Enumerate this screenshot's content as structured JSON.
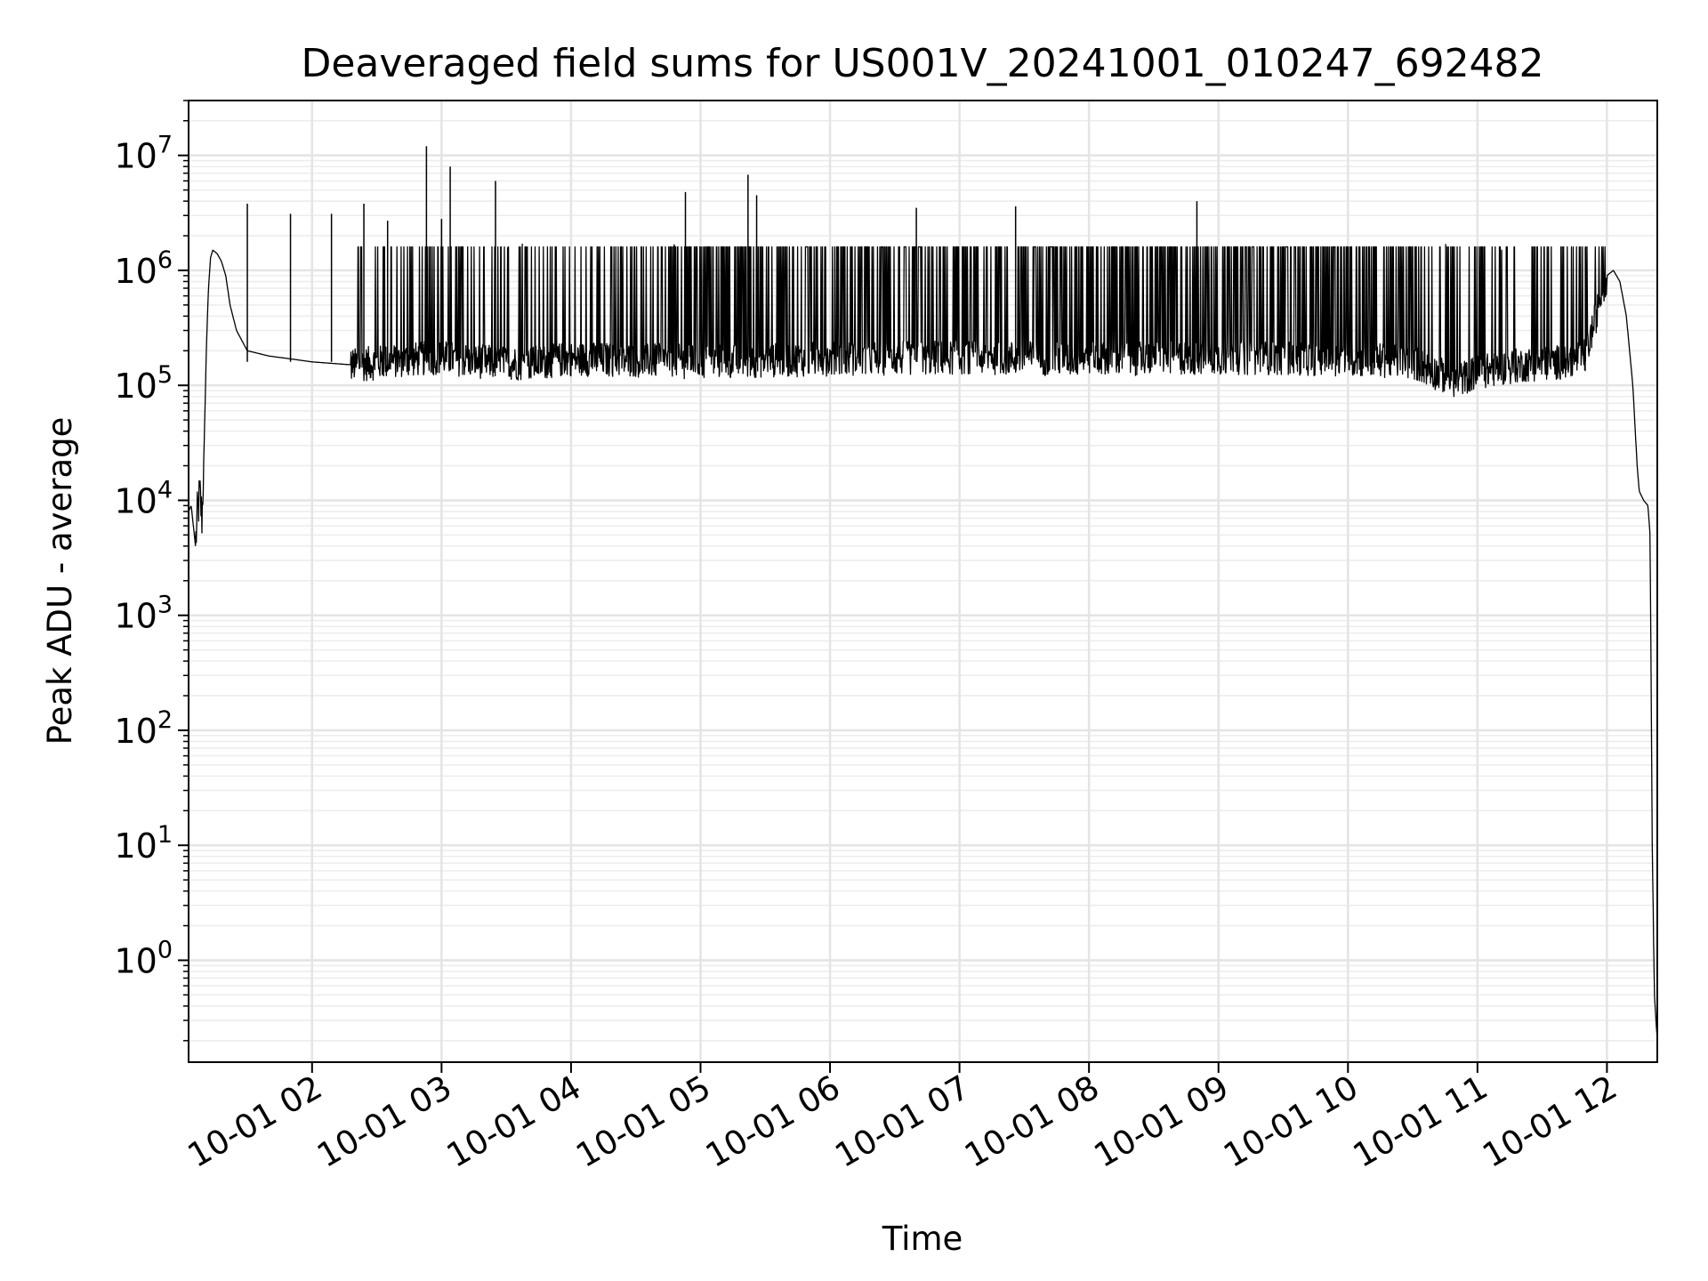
{
  "chart_data": {
    "type": "line",
    "title": "Deaveraged field sums for US001V_20241001_010247_692482",
    "xlabel": "Time",
    "ylabel": "Peak ADU - average",
    "yscale": "log",
    "ylim": [
      0.13,
      30000000
    ],
    "xlim": [
      "2024-10-01 01:02:47",
      "2024-10-01 12:23:20"
    ],
    "grid": true,
    "legend": "none",
    "x_tick_labels": [
      "10-01 02",
      "10-01 03",
      "10-01 04",
      "10-01 05",
      "10-01 06",
      "10-01 07",
      "10-01 08",
      "10-01 09",
      "10-01 10",
      "10-01 11",
      "10-01 12"
    ],
    "x_ticks": [
      "2024-10-01 02:00",
      "2024-10-01 03:00",
      "2024-10-01 04:00",
      "2024-10-01 05:00",
      "2024-10-01 06:00",
      "2024-10-01 07:00",
      "2024-10-01 08:00",
      "2024-10-01 09:00",
      "2024-10-01 10:00",
      "2024-10-01 11:00",
      "2024-10-01 12:00"
    ],
    "y_ticks": [
      {
        "value": 1,
        "base": "10",
        "exp": "0"
      },
      {
        "value": 10,
        "base": "10",
        "exp": "1"
      },
      {
        "value": 100,
        "base": "10",
        "exp": "2"
      },
      {
        "value": 1000,
        "base": "10",
        "exp": "3"
      },
      {
        "value": 10000,
        "base": "10",
        "exp": "4"
      },
      {
        "value": 100000,
        "base": "10",
        "exp": "5"
      },
      {
        "value": 1000000,
        "base": "10",
        "exp": "6"
      },
      {
        "value": 10000000,
        "base": "10",
        "exp": "7"
      }
    ],
    "series": [
      {
        "color": "#000000",
        "x": [
          "2024-10-01 01:02:47",
          "2024-10-01 01:04",
          "2024-10-01 01:05",
          "2024-10-01 01:06",
          "2024-10-01 01:07",
          "2024-10-01 01:08",
          "2024-10-01 01:09",
          "2024-10-01 01:10",
          "2024-10-01 01:11",
          "2024-10-01 01:12",
          "2024-10-01 01:13",
          "2024-10-01 01:14",
          "2024-10-01 01:16",
          "2024-10-01 01:18",
          "2024-10-01 01:20",
          "2024-10-01 01:22",
          "2024-10-01 01:25",
          "2024-10-01 01:30",
          "2024-10-01 01:40",
          "2024-10-01 01:50",
          "2024-10-01 02:00",
          "2024-10-01 02:20",
          "2024-10-01 02:40",
          "2024-10-01 03:00",
          "2024-10-01 03:20",
          "2024-10-01 03:40",
          "2024-10-01 04:00",
          "2024-10-01 04:30",
          "2024-10-01 05:00",
          "2024-10-01 05:30",
          "2024-10-01 06:00",
          "2024-10-01 07:00",
          "2024-10-01 08:00",
          "2024-10-01 09:00",
          "2024-10-01 10:00",
          "2024-10-01 10:30",
          "2024-10-01 10:40",
          "2024-10-01 10:50",
          "2024-10-01 11:00",
          "2024-10-01 11:20",
          "2024-10-01 11:40",
          "2024-10-01 11:50",
          "2024-10-01 11:55",
          "2024-10-01 12:00",
          "2024-10-01 12:03",
          "2024-10-01 12:06",
          "2024-10-01 12:09",
          "2024-10-01 12:12",
          "2024-10-01 12:14",
          "2024-10-01 12:15",
          "2024-10-01 12:17",
          "2024-10-01 12:19",
          "2024-10-01 12:20",
          "2024-10-01 12:21",
          "2024-10-01 12:22",
          "2024-10-01 12:23:20"
        ],
        "y": [
          8000,
          9000,
          6000,
          4000,
          8000,
          11000,
          7000,
          30000,
          200000,
          700000,
          1300000,
          1500000,
          1400000,
          1200000,
          900000,
          500000,
          300000,
          200000,
          180000,
          170000,
          160000,
          150000,
          165000,
          175000,
          160000,
          155000,
          170000,
          165000,
          160000,
          165000,
          170000,
          175000,
          170000,
          175000,
          170000,
          160000,
          130000,
          110000,
          130000,
          150000,
          160000,
          180000,
          400000,
          900000,
          1000000,
          800000,
          400000,
          100000,
          20000,
          12000,
          10000,
          9000,
          5000,
          10,
          0.5,
          0.2
        ]
      }
    ],
    "spikes": [
      {
        "x": "2024-10-01 01:30",
        "y": 3800000
      },
      {
        "x": "2024-10-01 01:50",
        "y": 3100000
      },
      {
        "x": "2024-10-01 02:09",
        "y": 3100000
      },
      {
        "x": "2024-10-01 02:24",
        "y": 3800000
      },
      {
        "x": "2024-10-01 02:35",
        "y": 2700000
      },
      {
        "x": "2024-10-01 02:53",
        "y": 12000000
      },
      {
        "x": "2024-10-01 03:00",
        "y": 2800000
      },
      {
        "x": "2024-10-01 03:04",
        "y": 8000000
      },
      {
        "x": "2024-10-01 03:25",
        "y": 6000000
      },
      {
        "x": "2024-10-01 04:53",
        "y": 4800000
      },
      {
        "x": "2024-10-01 05:22",
        "y": 6800000
      },
      {
        "x": "2024-10-01 05:26",
        "y": 4500000
      },
      {
        "x": "2024-10-01 06:40",
        "y": 3500000
      },
      {
        "x": "2024-10-01 07:26",
        "y": 3600000
      },
      {
        "x": "2024-10-01 08:50",
        "y": 4000000
      },
      {
        "x": "2024-10-01 10:00",
        "y": 1600000
      },
      {
        "x": "2024-10-01 11:50",
        "y": 1600000
      }
    ]
  }
}
